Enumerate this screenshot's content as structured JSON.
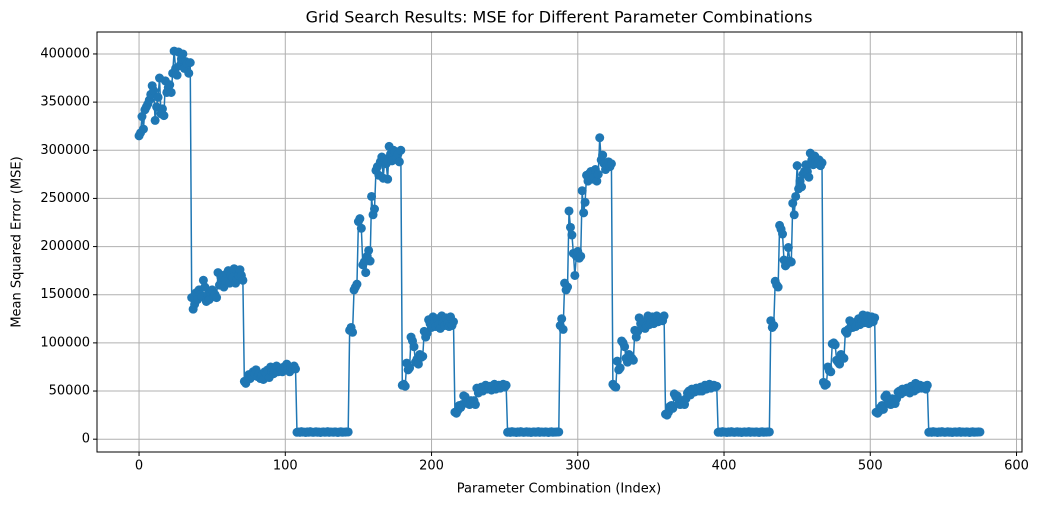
{
  "chart_data": {
    "type": "line",
    "title": "Grid Search Results: MSE for Different Parameter Combinations",
    "x_label": "Parameter Combination (Index)",
    "y_label": "Mean Squared Error (MSE)",
    "grid": true,
    "xlim": [
      -28.75,
      603.75
    ],
    "ylim": [
      -13300,
      422800
    ],
    "xticks": [
      0,
      100,
      200,
      300,
      400,
      500,
      600
    ],
    "yticks": [
      0,
      50000,
      100000,
      150000,
      200000,
      250000,
      300000,
      350000,
      400000
    ],
    "x": [
      0,
      1,
      2,
      3,
      4,
      5,
      6,
      7,
      8,
      9,
      10,
      11,
      12,
      13,
      14,
      15,
      16,
      17,
      18,
      19,
      20,
      21,
      22,
      23,
      24,
      25,
      26,
      27,
      28,
      29,
      30,
      31,
      32,
      33,
      34,
      35,
      36,
      37,
      38,
      39,
      40,
      41,
      42,
      43,
      44,
      45,
      46,
      47,
      48,
      49,
      50,
      51,
      52,
      53,
      54,
      55,
      56,
      57,
      58,
      59,
      60,
      61,
      62,
      63,
      64,
      65,
      66,
      67,
      68,
      69,
      70,
      71,
      72,
      73,
      74,
      75,
      76,
      77,
      78,
      79,
      80,
      81,
      82,
      83,
      84,
      85,
      86,
      87,
      88,
      89,
      90,
      91,
      92,
      93,
      94,
      95,
      96,
      97,
      98,
      99,
      100,
      101,
      102,
      103,
      104,
      105,
      106,
      107,
      108,
      109,
      110,
      111,
      112,
      113,
      114,
      115,
      116,
      117,
      118,
      119,
      120,
      121,
      122,
      123,
      124,
      125,
      126,
      127,
      128,
      129,
      130,
      131,
      132,
      133,
      134,
      135,
      136,
      137,
      138,
      139,
      140,
      141,
      142,
      143,
      144,
      145,
      146,
      147,
      148,
      149,
      150,
      151,
      152,
      153,
      154,
      155,
      156,
      157,
      158,
      159,
      160,
      161,
      162,
      163,
      164,
      165,
      166,
      167,
      168,
      169,
      170,
      171,
      172,
      173,
      174,
      175,
      176,
      177,
      178,
      179,
      180,
      181,
      182,
      183,
      184,
      185,
      186,
      187,
      188,
      189,
      190,
      191,
      192,
      193,
      194,
      195,
      196,
      197,
      198,
      199,
      200,
      201,
      202,
      203,
      204,
      205,
      206,
      207,
      208,
      209,
      210,
      211,
      212,
      213,
      214,
      215,
      216,
      217,
      218,
      219,
      220,
      221,
      222,
      223,
      224,
      225,
      226,
      227,
      228,
      229,
      230,
      231,
      232,
      233,
      234,
      235,
      236,
      237,
      238,
      239,
      240,
      241,
      242,
      243,
      244,
      245,
      246,
      247,
      248,
      249,
      250,
      251,
      252,
      253,
      254,
      255,
      256,
      257,
      258,
      259,
      260,
      261,
      262,
      263,
      264,
      265,
      266,
      267,
      268,
      269,
      270,
      271,
      272,
      273,
      274,
      275,
      276,
      277,
      278,
      279,
      280,
      281,
      282,
      283,
      284,
      285,
      286,
      287,
      288,
      289,
      290,
      291,
      292,
      293,
      294,
      295,
      296,
      297,
      298,
      299,
      300,
      301,
      302,
      303,
      304,
      305,
      306,
      307,
      308,
      309,
      310,
      311,
      312,
      313,
      314,
      315,
      316,
      317,
      318,
      319,
      320,
      321,
      322,
      323,
      324,
      325,
      326,
      327,
      328,
      329,
      330,
      331,
      332,
      333,
      334,
      335,
      336,
      337,
      338,
      339,
      340,
      341,
      342,
      343,
      344,
      345,
      346,
      347,
      348,
      349,
      350,
      351,
      352,
      353,
      354,
      355,
      356,
      357,
      358,
      359,
      360,
      361,
      362,
      363,
      364,
      365,
      366,
      367,
      368,
      369,
      370,
      371,
      372,
      373,
      374,
      375,
      376,
      377,
      378,
      379,
      380,
      381,
      382,
      383,
      384,
      385,
      386,
      387,
      388,
      389,
      390,
      391,
      392,
      393,
      394,
      395,
      396,
      397,
      398,
      399,
      400,
      401,
      402,
      403,
      404,
      405,
      406,
      407,
      408,
      409,
      410,
      411,
      412,
      413,
      414,
      415,
      416,
      417,
      418,
      419,
      420,
      421,
      422,
      423,
      424,
      425,
      426,
      427,
      428,
      429,
      430,
      431,
      432,
      433,
      434,
      435,
      436,
      437,
      438,
      439,
      440,
      441,
      442,
      443,
      444,
      445,
      446,
      447,
      448,
      449,
      450,
      451,
      452,
      453,
      454,
      455,
      456,
      457,
      458,
      459,
      460,
      461,
      462,
      463,
      464,
      465,
      466,
      467,
      468,
      469,
      470,
      471,
      472,
      473,
      474,
      475,
      476,
      477,
      478,
      479,
      480,
      481,
      482,
      483,
      484,
      485,
      486,
      487,
      488,
      489,
      490,
      491,
      492,
      493,
      494,
      495,
      496,
      497,
      498,
      499,
      500,
      501,
      502,
      503,
      504,
      505,
      506,
      507,
      508,
      509,
      510,
      511,
      512,
      513,
      514,
      515,
      516,
      517,
      518,
      519,
      520,
      521,
      522,
      523,
      524,
      525,
      526,
      527,
      528,
      529,
      530,
      531,
      532,
      533,
      534,
      535,
      536,
      537,
      538,
      539,
      540,
      541,
      542,
      543,
      544,
      545,
      546,
      547,
      548,
      549,
      550,
      551,
      552,
      553,
      554,
      555,
      556,
      557,
      558,
      559,
      560,
      561,
      562,
      563,
      564,
      565,
      566,
      567,
      568,
      569,
      570,
      571,
      572,
      573,
      574,
      575
    ],
    "series": [
      {
        "color": "#1f77b4",
        "values": [
          315000,
          318000,
          335000,
          322000,
          342000,
          345000,
          348000,
          352000,
          358000,
          367000,
          362000,
          331000,
          345000,
          355000,
          375000,
          338000,
          343000,
          336000,
          372000,
          360000,
          365000,
          368000,
          360000,
          380000,
          403000,
          385000,
          378000,
          402000,
          388000,
          395000,
          400000,
          385000,
          392000,
          390000,
          380000,
          391000,
          147000,
          135000,
          140000,
          152000,
          145000,
          155000,
          150000,
          148000,
          165000,
          158000,
          143000,
          150000,
          145000,
          152000,
          155000,
          148000,
          150000,
          147000,
          173000,
          160000,
          168000,
          170000,
          158000,
          165000,
          172000,
          175000,
          162000,
          170000,
          168000,
          177000,
          162000,
          166000,
          170000,
          176000,
          170000,
          165000,
          60000,
          58000,
          62000,
          67000,
          63000,
          65000,
          70000,
          68000,
          72000,
          65000,
          68000,
          63000,
          66000,
          62000,
          70000,
          68000,
          72000,
          64000,
          75000,
          70000,
          68000,
          72000,
          76000,
          70000,
          74000,
          72000,
          70000,
          75000,
          73000,
          78000,
          72000,
          70000,
          74000,
          73000,
          76000,
          73000,
          7200,
          7500,
          7100,
          7800,
          7300,
          7400,
          7000,
          7600,
          7200,
          7900,
          7400,
          7100,
          7300,
          7700,
          7200,
          7500,
          7000,
          7400,
          7600,
          7200,
          7300,
          7800,
          7100,
          7500,
          7400,
          7200,
          7600,
          7300,
          7000,
          7500,
          7700,
          7200,
          7400,
          7300,
          7600,
          7500,
          113000,
          116000,
          111000,
          155000,
          158000,
          161000,
          226000,
          229000,
          219000,
          181000,
          184000,
          173000,
          190000,
          196000,
          185000,
          252000,
          233000,
          239000,
          279000,
          283000,
          274000,
          288000,
          293000,
          271000,
          291000,
          286000,
          270000,
          304000,
          296000,
          289000,
          300000,
          298000,
          292000,
          296000,
          288000,
          300000,
          56000,
          57000,
          55000,
          79000,
          72000,
          74000,
          106000,
          102000,
          96000,
          80000,
          83000,
          78000,
          88000,
          85000,
          86000,
          112000,
          106000,
          110000,
          124000,
          120000,
          116000,
          127000,
          122000,
          117000,
          125000,
          119000,
          115000,
          128000,
          121000,
          118000,
          126000,
          120000,
          117000,
          127000,
          118000,
          122000,
          28000,
          27000,
          30000,
          35000,
          33000,
          36000,
          45000,
          44000,
          38000,
          37000,
          36000,
          40000,
          38000,
          40000,
          36000,
          53000,
          48000,
          51000,
          54000,
          50000,
          52000,
          56000,
          52000,
          54000,
          55000,
          51000,
          53000,
          57000,
          52000,
          55000,
          56000,
          53000,
          54000,
          57000,
          54000,
          56000,
          7200,
          7500,
          7100,
          7800,
          7300,
          7400,
          7000,
          7600,
          7200,
          7900,
          7400,
          7100,
          7300,
          7700,
          7200,
          7500,
          7000,
          7400,
          7600,
          7200,
          7300,
          7800,
          7100,
          7500,
          7400,
          7200,
          7600,
          7300,
          7000,
          7500,
          7700,
          7200,
          7400,
          7300,
          7600,
          7500,
          118000,
          125000,
          114000,
          162000,
          155000,
          158000,
          237000,
          220000,
          212000,
          193000,
          170000,
          190000,
          195000,
          188000,
          190000,
          258000,
          235000,
          246000,
          274000,
          268000,
          276000,
          278000,
          270000,
          272000,
          280000,
          268000,
          275000,
          313000,
          290000,
          295000,
          286000,
          280000,
          284000,
          288000,
          283000,
          286000,
          57000,
          55000,
          54000,
          81000,
          72000,
          74000,
          102000,
          100000,
          96000,
          84000,
          80000,
          88000,
          86000,
          84000,
          82000,
          113000,
          106000,
          112000,
          126000,
          120000,
          116000,
          122000,
          115000,
          118000,
          128000,
          119000,
          121000,
          127000,
          120000,
          125000,
          128000,
          122000,
          124000,
          126000,
          123000,
          128000,
          26000,
          25000,
          28000,
          34000,
          35000,
          32000,
          47000,
          44000,
          45000,
          37000,
          36000,
          40000,
          38000,
          36000,
          42000,
          48000,
          50000,
          46000,
          52000,
          50000,
          49000,
          53000,
          51000,
          50000,
          54000,
          50000,
          52000,
          56000,
          52000,
          55000,
          57000,
          53000,
          55000,
          56000,
          54000,
          55000,
          7200,
          7500,
          7100,
          7800,
          7300,
          7400,
          7000,
          7600,
          7200,
          7900,
          7400,
          7100,
          7300,
          7700,
          7200,
          7500,
          7000,
          7400,
          7600,
          7200,
          7300,
          7800,
          7100,
          7500,
          7400,
          7200,
          7600,
          7300,
          7000,
          7500,
          7700,
          7200,
          7400,
          7300,
          7600,
          7500,
          123000,
          116000,
          118000,
          164000,
          160000,
          158000,
          222000,
          218000,
          213000,
          186000,
          180000,
          182000,
          199000,
          185000,
          184000,
          245000,
          233000,
          252000,
          284000,
          260000,
          268000,
          262000,
          275000,
          278000,
          285000,
          278000,
          272000,
          297000,
          290000,
          285000,
          294000,
          288000,
          286000,
          290000,
          284000,
          287000,
          59000,
          56000,
          57000,
          75000,
          71000,
          70000,
          99000,
          100000,
          98000,
          82000,
          80000,
          78000,
          88000,
          85000,
          84000,
          112000,
          110000,
          114000,
          123000,
          118000,
          116000,
          121000,
          117000,
          119000,
          125000,
          119000,
          122000,
          129000,
          121000,
          123000,
          128000,
          120000,
          124000,
          127000,
          122000,
          126000,
          28000,
          27000,
          29000,
          33000,
          35000,
          31000,
          44000,
          46000,
          40000,
          37000,
          36000,
          42000,
          38000,
          37000,
          42000,
          49000,
          50000,
          47000,
          52000,
          49000,
          51000,
          53000,
          50000,
          48000,
          55000,
          51000,
          50000,
          58000,
          52000,
          54000,
          56000,
          53000,
          55000,
          55000,
          52000,
          56000,
          7200,
          7500,
          7100,
          7800,
          7300,
          7400,
          7000,
          7600,
          7200,
          7900,
          7400,
          7100,
          7300,
          7700,
          7200,
          7500,
          7000,
          7400,
          7600,
          7200,
          7300,
          7800,
          7100,
          7500,
          7400,
          7200,
          7600,
          7300,
          7000,
          7500,
          7700,
          7200,
          7400,
          7300,
          7600,
          7500
        ]
      }
    ]
  }
}
